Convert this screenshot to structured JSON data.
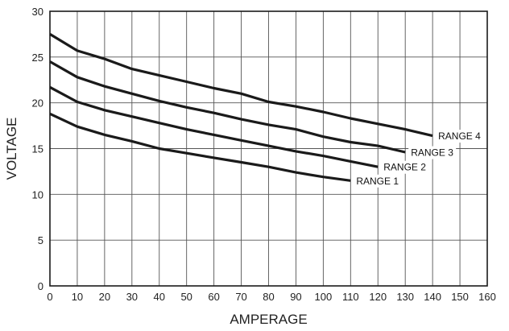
{
  "chart_data": {
    "type": "line",
    "title": "",
    "xlabel": "AMPERAGE",
    "ylabel": "VOLTAGE",
    "xlim": [
      0,
      160
    ],
    "ylim": [
      0,
      30
    ],
    "x_ticks": [
      0,
      10,
      20,
      30,
      40,
      50,
      60,
      70,
      80,
      90,
      100,
      110,
      120,
      130,
      140,
      150,
      160
    ],
    "y_ticks": [
      0,
      5,
      10,
      15,
      20,
      25,
      30
    ],
    "grid": true,
    "legend": "none",
    "line_color": "#1a1a1a",
    "series": [
      {
        "name": "RANGE 1",
        "x": [
          0,
          10,
          20,
          30,
          40,
          50,
          60,
          70,
          80,
          90,
          100,
          110
        ],
        "y": [
          18.8,
          17.4,
          16.5,
          15.8,
          15.0,
          14.5,
          14.0,
          13.5,
          13.0,
          12.4,
          11.9,
          11.5
        ]
      },
      {
        "name": "RANGE 2",
        "x": [
          0,
          10,
          20,
          30,
          40,
          50,
          60,
          70,
          80,
          90,
          100,
          110,
          120
        ],
        "y": [
          21.7,
          20.1,
          19.2,
          18.5,
          17.8,
          17.1,
          16.5,
          15.9,
          15.3,
          14.7,
          14.2,
          13.6,
          13.0
        ]
      },
      {
        "name": "RANGE 3",
        "x": [
          0,
          10,
          20,
          30,
          40,
          50,
          60,
          70,
          80,
          90,
          100,
          110,
          120,
          130
        ],
        "y": [
          24.5,
          22.8,
          21.8,
          21.0,
          20.2,
          19.5,
          18.9,
          18.2,
          17.6,
          17.1,
          16.3,
          15.7,
          15.3,
          14.6
        ]
      },
      {
        "name": "RANGE 4",
        "x": [
          0,
          10,
          20,
          30,
          40,
          50,
          60,
          70,
          80,
          90,
          100,
          110,
          120,
          130,
          140
        ],
        "y": [
          27.5,
          25.7,
          24.8,
          23.7,
          23.0,
          22.3,
          21.6,
          21.0,
          20.1,
          19.6,
          19.0,
          18.3,
          17.7,
          17.1,
          16.4
        ]
      }
    ]
  }
}
